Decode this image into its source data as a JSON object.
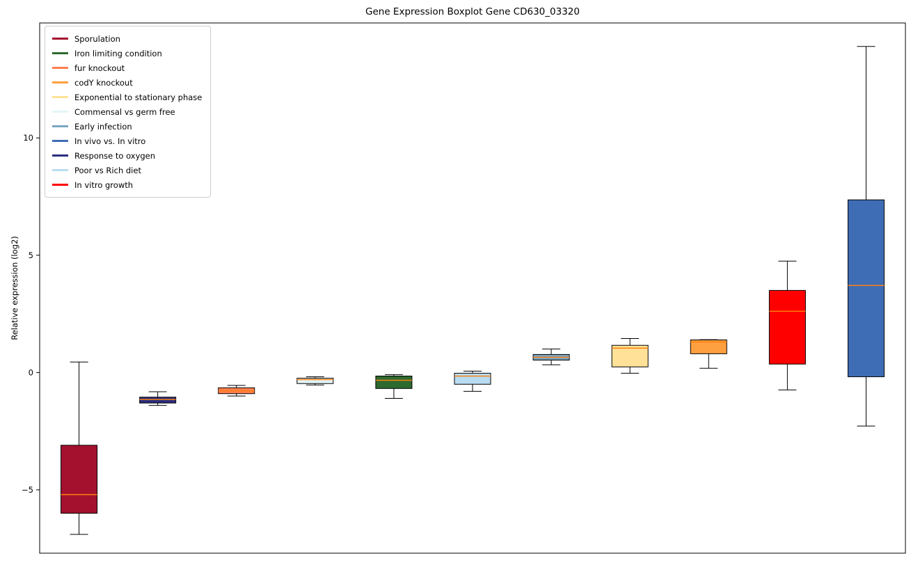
{
  "title": "Gene Expression Boxplot Gene CD630_03320",
  "chart_data": {
    "type": "boxplot",
    "title": "Gene Expression Boxplot Gene CD630_03320",
    "xlabel": "",
    "ylabel": "Relative expression (log2)",
    "ylim": [
      -7.7,
      14.9
    ],
    "yticks": [
      -5,
      0,
      5,
      10
    ],
    "grid": false,
    "legend_position": "upper left",
    "median_color": "#ff7f0e",
    "box_edge_color": "#000000",
    "whisker_color": "#000000",
    "legend": [
      {
        "label": "Sporulation",
        "color": "#a3112e"
      },
      {
        "label": "Iron limiting condition",
        "color": "#2d6a2f"
      },
      {
        "label": "fur knockout",
        "color": "#ff7f50"
      },
      {
        "label": "codY knockout",
        "color": "#ffa040"
      },
      {
        "label": "Exponential to stationary phase",
        "color": "#ffe298"
      },
      {
        "label": "Commensal vs germ free",
        "color": "#e3f4f7"
      },
      {
        "label": "Early infection",
        "color": "#7aa6c2"
      },
      {
        "label": "In vivo vs. In vitro",
        "color": "#3f6db5"
      },
      {
        "label": "Response to oxygen",
        "color": "#2b2e7c"
      },
      {
        "label": "Poor vs Rich diet",
        "color": "#b9dcf2"
      },
      {
        "label": "In vitro growth",
        "color": "#ff0000"
      }
    ],
    "boxes": [
      {
        "name": "Sporulation",
        "color": "#a3112e",
        "whislo": -6.9,
        "q1": -6.0,
        "med": -5.2,
        "q3": -3.1,
        "whishi": 0.45
      },
      {
        "name": "Response to oxygen",
        "color": "#2b2e7c",
        "whislo": -1.4,
        "q1": -1.3,
        "med": -1.15,
        "q3": -1.05,
        "whishi": -0.82
      },
      {
        "name": "fur knockout",
        "color": "#ff7f50",
        "whislo": -1.0,
        "q1": -0.9,
        "med": -0.78,
        "q3": -0.65,
        "whishi": -0.55
      },
      {
        "name": "Commensal vs germ free",
        "color": "#e3f4f7",
        "whislo": -0.53,
        "q1": -0.47,
        "med": -0.3,
        "q3": -0.24,
        "whishi": -0.18
      },
      {
        "name": "Iron limiting condition",
        "color": "#2d6a2f",
        "whislo": -1.1,
        "q1": -0.68,
        "med": -0.33,
        "q3": -0.15,
        "whishi": -0.09
      },
      {
        "name": "Poor vs Rich diet",
        "color": "#b9dcf2",
        "whislo": -0.8,
        "q1": -0.5,
        "med": -0.15,
        "q3": -0.03,
        "whishi": 0.06
      },
      {
        "name": "Early infection",
        "color": "#7aa6c2",
        "whislo": 0.33,
        "q1": 0.53,
        "med": 0.65,
        "q3": 0.77,
        "whishi": 1.0
      },
      {
        "name": "Exponential to stationary phase",
        "color": "#ffe298",
        "whislo": -0.03,
        "q1": 0.24,
        "med": 1.04,
        "q3": 1.16,
        "whishi": 1.45
      },
      {
        "name": "codY knockout",
        "color": "#ffa040",
        "whislo": 0.18,
        "q1": 0.8,
        "med": 1.3,
        "q3": 1.39,
        "whishi": 1.4
      },
      {
        "name": "In vitro growth",
        "color": "#ff0000",
        "whislo": -0.74,
        "q1": 0.36,
        "med": 2.61,
        "q3": 3.5,
        "whishi": 4.75
      },
      {
        "name": "In vivo vs. In vitro",
        "color": "#3f6db5",
        "whislo": -2.28,
        "q1": -0.18,
        "med": 3.71,
        "q3": 7.36,
        "whishi": 13.9
      }
    ]
  }
}
